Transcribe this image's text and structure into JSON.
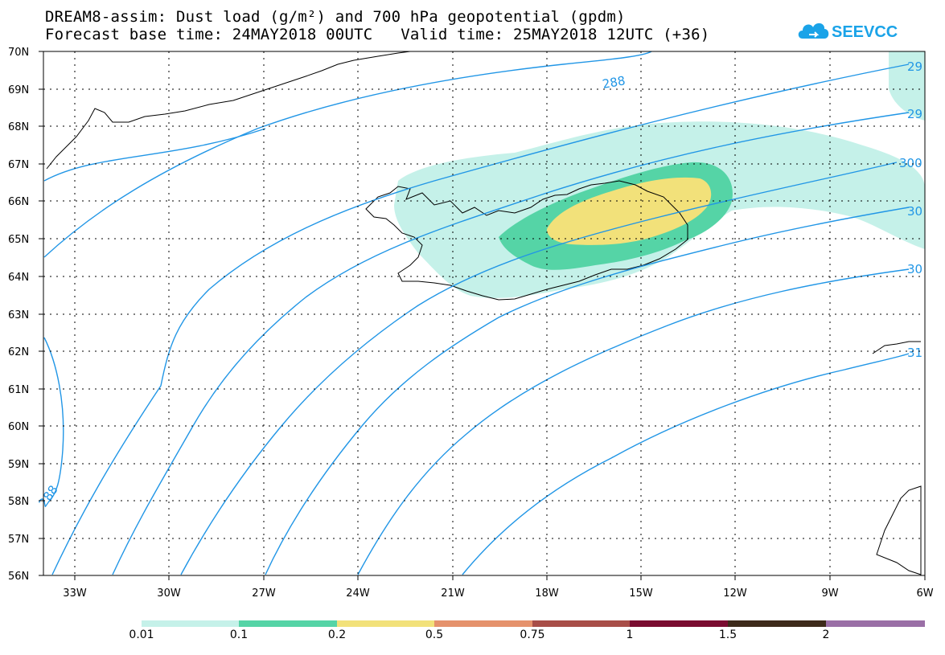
{
  "header": {
    "title_line1": "DREAM8-assim: Dust load (g/m²) and 700 hPa geopotential (gpdm)",
    "title_line2": "Forecast base time: 24MAY2018 00UTC   Valid time: 25MAY2018 12UTC (+36)",
    "logo_text": "SEEVCCC",
    "logo_icon": "cloud-icon"
  },
  "map": {
    "lat_labels": [
      "70N",
      "69N",
      "68N",
      "67N",
      "66N",
      "65N",
      "64N",
      "63N",
      "62N",
      "61N",
      "60N",
      "59N",
      "58N",
      "57N",
      "56N"
    ],
    "lon_labels": [
      "33W",
      "30W",
      "27W",
      "24W",
      "21W",
      "18W",
      "15W",
      "12W",
      "9W",
      "6W"
    ],
    "contour_labels": [
      "288",
      "29",
      "29",
      "300",
      "30",
      "30",
      "31",
      "288"
    ],
    "contour_color": "#2196e6",
    "coastline_color": "#000000",
    "dust_colors": {
      "0.01-0.1": "#c5f1e9",
      "0.1-0.2": "#55d4a6",
      "0.2-0.5": "#f2e17a"
    }
  },
  "colorbar": {
    "labels": [
      "0.01",
      "0.1",
      "0.2",
      "0.5",
      "0.75",
      "1",
      "1.5",
      "2"
    ],
    "colors": [
      "#c5f1e9",
      "#55d4a6",
      "#f2e17a",
      "#e5926c",
      "#a84e48",
      "#7a0c30",
      "#3d2a1a",
      "#9a6fa6"
    ]
  }
}
